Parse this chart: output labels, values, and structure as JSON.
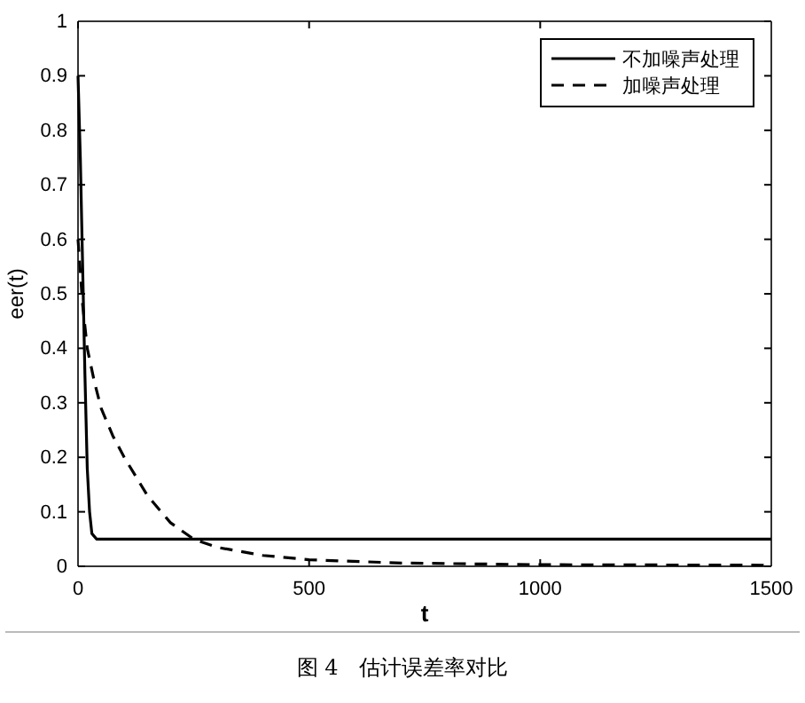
{
  "chart_data": {
    "type": "line",
    "xlabel": "t",
    "ylabel": "eer(t)",
    "xlim": [
      0,
      1500
    ],
    "xticks": [
      0,
      500,
      1000,
      1500
    ],
    "ylim": [
      0,
      1
    ],
    "yticks": [
      0,
      0.1,
      0.2,
      0.3,
      0.4,
      0.5,
      0.6,
      0.7,
      0.8,
      0.9,
      1
    ],
    "grid": false,
    "legend": "top right",
    "annotations": [
      "图 4　估计误差率对比"
    ],
    "series": [
      {
        "name": "不加噪声处理",
        "color": "#000000",
        "line_style": "solid",
        "x": [
          0,
          5,
          10,
          15,
          20,
          25,
          30,
          40,
          100,
          500,
          1000,
          1500
        ],
        "values": [
          0.9,
          0.75,
          0.55,
          0.35,
          0.18,
          0.1,
          0.06,
          0.05,
          0.05,
          0.05,
          0.05,
          0.05
        ]
      },
      {
        "name": "加噪声处理",
        "color": "#000000",
        "line_style": "dashed",
        "x": [
          0,
          10,
          20,
          35,
          50,
          75,
          100,
          150,
          200,
          250,
          300,
          400,
          500,
          700,
          1000,
          1500
        ],
        "values": [
          0.6,
          0.48,
          0.4,
          0.34,
          0.29,
          0.24,
          0.2,
          0.13,
          0.08,
          0.05,
          0.035,
          0.02,
          0.012,
          0.006,
          0.003,
          0.002
        ]
      }
    ]
  }
}
